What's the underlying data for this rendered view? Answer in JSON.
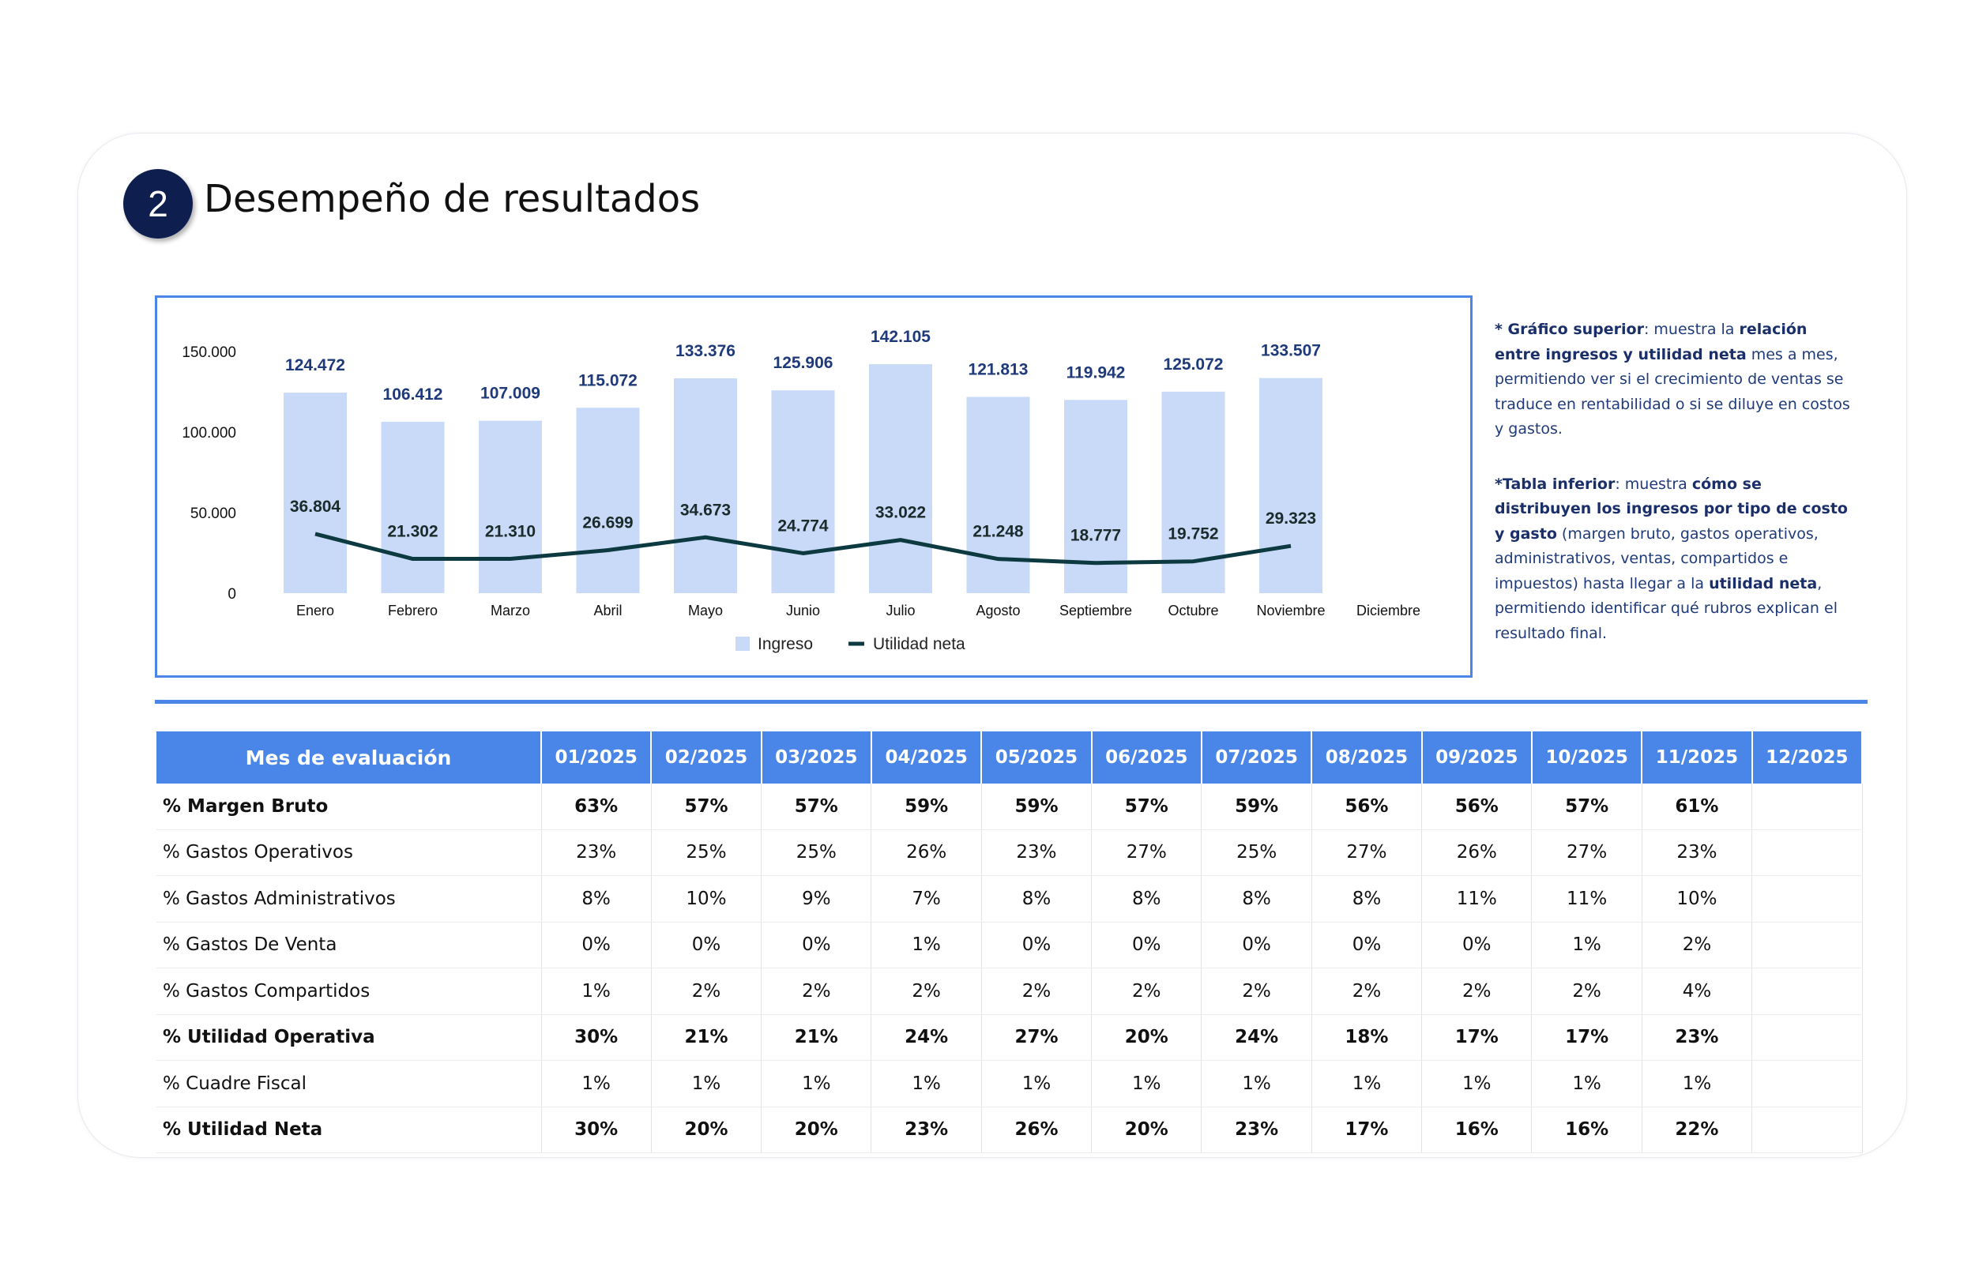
{
  "header": {
    "badge": "2",
    "title": "Desempeño de resultados"
  },
  "colors": {
    "bar": "#c9daf8",
    "line": "#0d3a40",
    "value_label": "#1f3a7a",
    "header_bg": "#4a86e8"
  },
  "chart_data": {
    "type": "bar",
    "categories": [
      "Enero",
      "Febrero",
      "Marzo",
      "Abril",
      "Mayo",
      "Junio",
      "Julio",
      "Agosto",
      "Septiembre",
      "Octubre",
      "Noviembre",
      "Diciembre"
    ],
    "series": [
      {
        "name": "Ingreso",
        "type": "bar",
        "values": [
          124472,
          106412,
          107009,
          115072,
          133376,
          125906,
          142105,
          121813,
          119942,
          125072,
          133507,
          null
        ],
        "labels": [
          "124.472",
          "106.412",
          "107.009",
          "115.072",
          "133.376",
          "125.906",
          "142.105",
          "121.813",
          "119.942",
          "125.072",
          "133.507",
          ""
        ]
      },
      {
        "name": "Utilidad neta",
        "type": "line",
        "values": [
          36804,
          21302,
          21310,
          26699,
          34673,
          24774,
          33022,
          21248,
          18777,
          19752,
          29323,
          null
        ],
        "labels": [
          "36.804",
          "21.302",
          "21.310",
          "26.699",
          "34.673",
          "24.774",
          "33.022",
          "21.248",
          "18.777",
          "19.752",
          "29.323",
          ""
        ]
      }
    ],
    "ylim": [
      0,
      150000
    ],
    "yticks": [
      0,
      50000,
      100000,
      150000
    ],
    "ytick_labels": [
      "0",
      "50.000",
      "100.000",
      "150.000"
    ],
    "legend": [
      "Ingreso",
      "Utilidad neta"
    ],
    "legend_position": "bottom",
    "grid": false
  },
  "notes": {
    "p1": [
      {
        "t": "* Gráfico superior",
        "b": true
      },
      {
        "t": ": muestra la ",
        "b": false
      },
      {
        "t": "relación entre ingresos y utilidad neta",
        "b": true
      },
      {
        "t": " mes a mes, permitiendo ver si el crecimiento de ventas se traduce en rentabilidad o si se diluye en costos y gastos.",
        "b": false
      }
    ],
    "p2": [
      {
        "t": "*Tabla inferior",
        "b": true
      },
      {
        "t": ": muestra ",
        "b": false
      },
      {
        "t": "cómo se distribuyen los ingresos por tipo de costo y gasto",
        "b": true
      },
      {
        "t": " (margen bruto, gastos operativos, administrativos, ventas, compartidos e impuestos) hasta llegar a la ",
        "b": false
      },
      {
        "t": "utilidad neta",
        "b": true
      },
      {
        "t": ", permitiendo identificar qué rubros explican el resultado final.",
        "b": false
      }
    ]
  },
  "table": {
    "header_label": "Mes de evaluación",
    "months": [
      "01/2025",
      "02/2025",
      "03/2025",
      "04/2025",
      "05/2025",
      "06/2025",
      "07/2025",
      "08/2025",
      "09/2025",
      "10/2025",
      "11/2025",
      "12/2025"
    ],
    "rows": [
      {
        "label": "% Margen Bruto",
        "bold": true,
        "values": [
          "63%",
          "57%",
          "57%",
          "59%",
          "59%",
          "57%",
          "59%",
          "56%",
          "56%",
          "57%",
          "61%",
          ""
        ]
      },
      {
        "label": "% Gastos Operativos",
        "bold": false,
        "values": [
          "23%",
          "25%",
          "25%",
          "26%",
          "23%",
          "27%",
          "25%",
          "27%",
          "26%",
          "27%",
          "23%",
          ""
        ]
      },
      {
        "label": "% Gastos Administrativos",
        "bold": false,
        "values": [
          "8%",
          "10%",
          "9%",
          "7%",
          "8%",
          "8%",
          "8%",
          "8%",
          "11%",
          "11%",
          "10%",
          ""
        ]
      },
      {
        "label": "% Gastos De Venta",
        "bold": false,
        "values": [
          "0%",
          "0%",
          "0%",
          "1%",
          "0%",
          "0%",
          "0%",
          "0%",
          "0%",
          "1%",
          "2%",
          ""
        ]
      },
      {
        "label": "% Gastos Compartidos",
        "bold": false,
        "values": [
          "1%",
          "2%",
          "2%",
          "2%",
          "2%",
          "2%",
          "2%",
          "2%",
          "2%",
          "2%",
          "4%",
          ""
        ]
      },
      {
        "label": "% Utilidad Operativa",
        "bold": true,
        "values": [
          "30%",
          "21%",
          "21%",
          "24%",
          "27%",
          "20%",
          "24%",
          "18%",
          "17%",
          "17%",
          "23%",
          ""
        ]
      },
      {
        "label": "% Cuadre Fiscal",
        "bold": false,
        "values": [
          "1%",
          "1%",
          "1%",
          "1%",
          "1%",
          "1%",
          "1%",
          "1%",
          "1%",
          "1%",
          "1%",
          ""
        ]
      },
      {
        "label": "% Utilidad Neta",
        "bold": true,
        "values": [
          "30%",
          "20%",
          "20%",
          "23%",
          "26%",
          "20%",
          "23%",
          "17%",
          "16%",
          "16%",
          "22%",
          ""
        ]
      }
    ]
  }
}
